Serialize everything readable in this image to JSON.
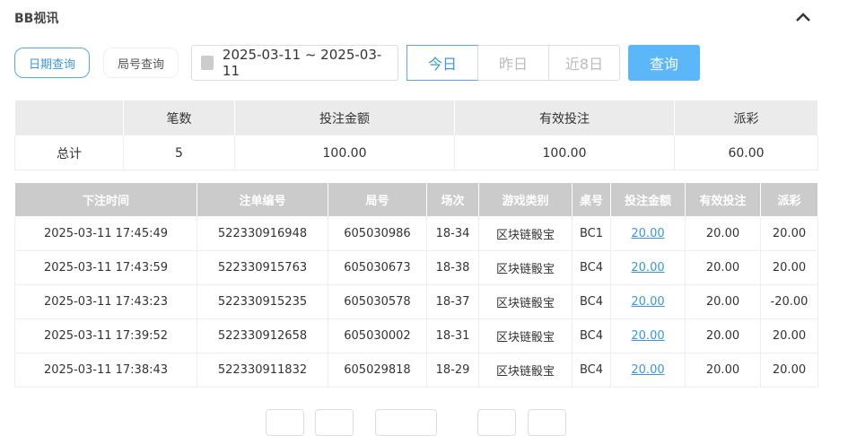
{
  "header": {
    "title": "BB视讯",
    "collapse_icon": "chevron-up-icon"
  },
  "filters": {
    "date_query": "日期查询",
    "round_query": "局号查询",
    "date_range": "2025-03-11 ~ 2025-03-11",
    "today": "今日",
    "yesterday": "昨日",
    "last8": "近8日",
    "search": "查询"
  },
  "summary": {
    "headers": [
      "",
      "笔数",
      "投注金额",
      "有效投注",
      "派彩"
    ],
    "row": [
      "总计",
      "5",
      "100.00",
      "100.00",
      "60.00"
    ]
  },
  "details": {
    "headers": [
      "下注时间",
      "注单编号",
      "局号",
      "场次",
      "游戏类别",
      "桌号",
      "投注金额",
      "有效投注",
      "派彩"
    ],
    "rows": [
      [
        "2025-03-11 17:45:49",
        "522330916948",
        "605030986",
        "18-34",
        "区块链骰宝",
        "BC1",
        "20.00",
        "20.00",
        "20.00"
      ],
      [
        "2025-03-11 17:43:59",
        "522330915763",
        "605030673",
        "18-38",
        "区块链骰宝",
        "BC4",
        "20.00",
        "20.00",
        "20.00"
      ],
      [
        "2025-03-11 17:43:23",
        "522330915235",
        "605030578",
        "18-37",
        "区块链骰宝",
        "BC4",
        "20.00",
        "20.00",
        "-20.00"
      ],
      [
        "2025-03-11 17:39:52",
        "522330912658",
        "605030002",
        "18-31",
        "区块链骰宝",
        "BC4",
        "20.00",
        "20.00",
        "20.00"
      ],
      [
        "2025-03-11 17:38:43",
        "522330911832",
        "605029818",
        "18-29",
        "区块链骰宝",
        "BC4",
        "20.00",
        "20.00",
        "20.00"
      ]
    ]
  },
  "colors": {
    "accent": "#5bb7f7",
    "negative": "#e5383b"
  }
}
